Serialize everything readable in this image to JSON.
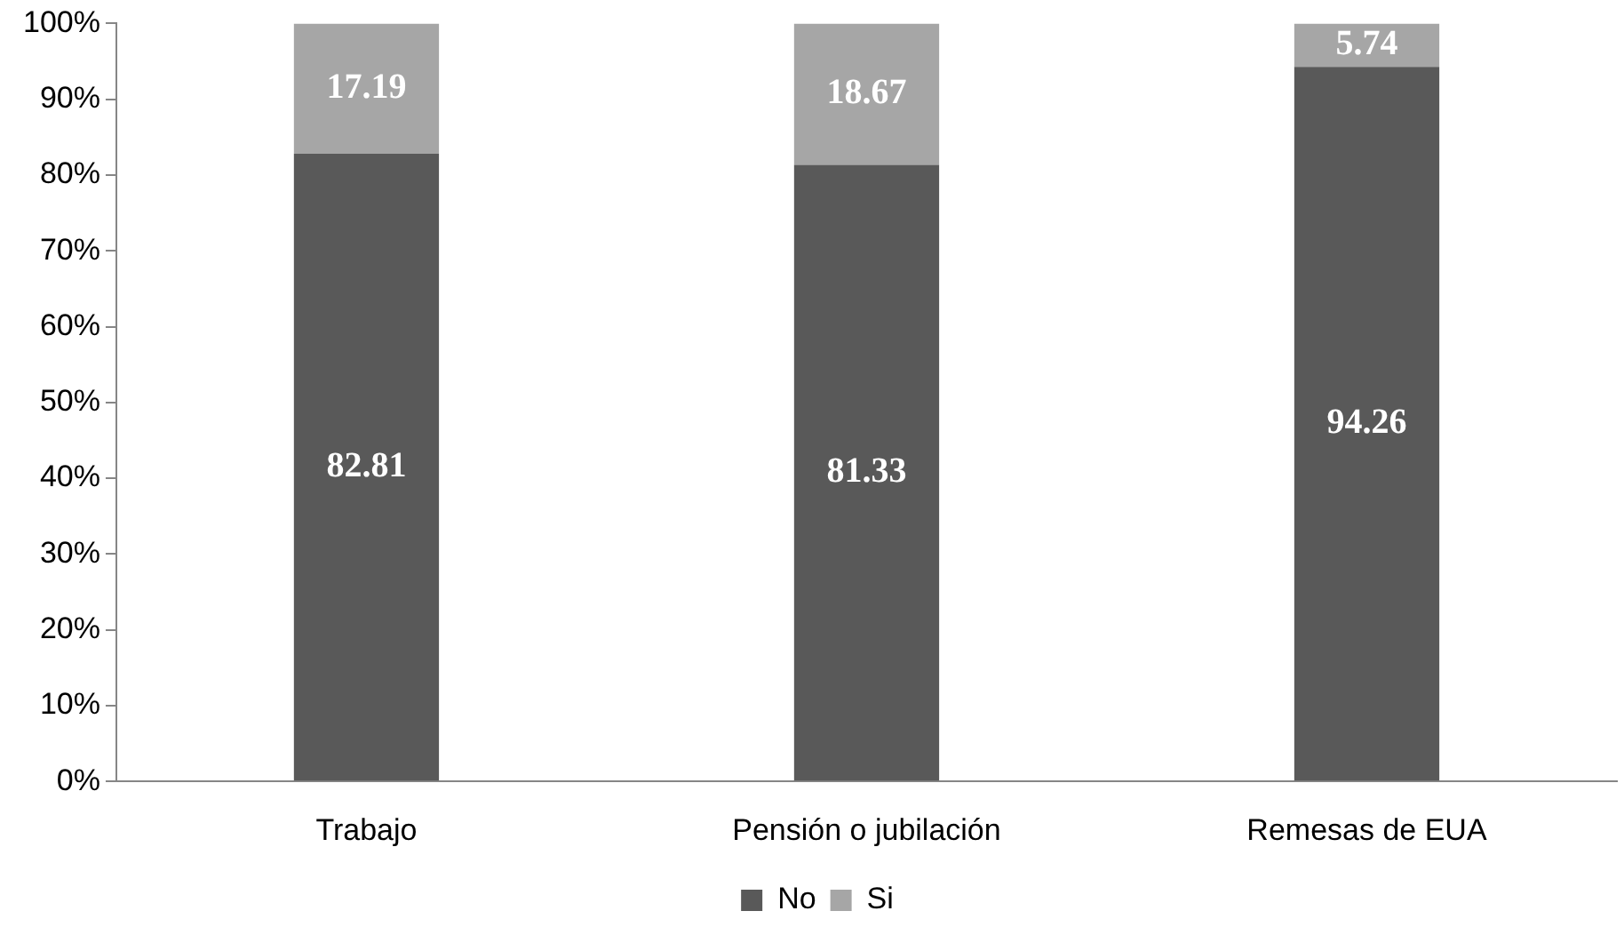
{
  "chart_data": {
    "type": "bar",
    "stacked": true,
    "categories": [
      "Trabajo",
      "Pensión o jubilación",
      "Remesas de EUA"
    ],
    "series": [
      {
        "name": "No",
        "color": "#595959",
        "values": [
          82.81,
          81.33,
          94.26
        ]
      },
      {
        "name": "Si",
        "color": "#a6a6a6",
        "values": [
          17.19,
          18.67,
          5.74
        ]
      }
    ],
    "ylim": [
      0,
      100
    ],
    "yticks": [
      {
        "value": 0,
        "label": "0%"
      },
      {
        "value": 10,
        "label": "10%"
      },
      {
        "value": 20,
        "label": "20%"
      },
      {
        "value": 30,
        "label": "30%"
      },
      {
        "value": 40,
        "label": "40%"
      },
      {
        "value": 50,
        "label": "50%"
      },
      {
        "value": 60,
        "label": "60%"
      },
      {
        "value": 70,
        "label": "70%"
      },
      {
        "value": 80,
        "label": "80%"
      },
      {
        "value": 90,
        "label": "90%"
      },
      {
        "value": 100,
        "label": "100%"
      }
    ],
    "data_labels": true,
    "grid": false,
    "legend": "bottom"
  }
}
